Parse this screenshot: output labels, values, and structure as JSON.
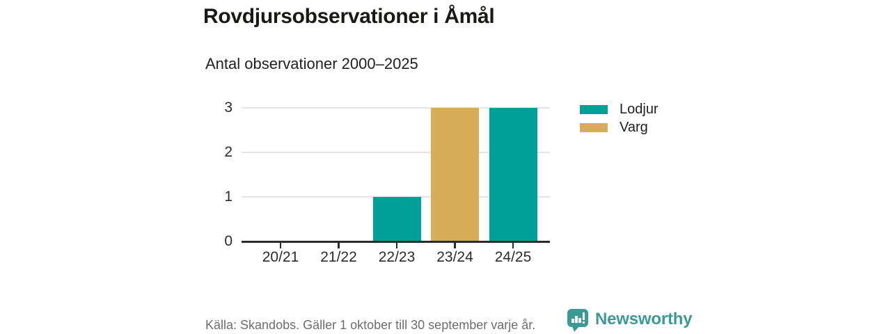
{
  "title": "Rovdjursobservationer i Åmål",
  "subtitle": "Antal observationer 2000–2025",
  "legend": [
    {
      "label": "Lodjur",
      "color": "#00a099"
    },
    {
      "label": "Varg",
      "color": "#d7ad5a"
    }
  ],
  "footer": {
    "source": "Källa: Skandobs. Gäller 1 oktober till 30 september varje år.",
    "brand_name": "Newsworthy",
    "brand_logo_icon": "bar-chart-speech-bubble-icon"
  },
  "colors": {
    "series_lodjur": "#00a099",
    "series_varg": "#d7ad5a",
    "axis": "#2b2b2b",
    "gridline": "#e4e4e4",
    "title_text": "#191917",
    "body_text": "#202020",
    "muted_text": "#6d6d6d",
    "brand_teal": "#3b9a94",
    "background": "#ffffff"
  },
  "chart_data": {
    "type": "bar",
    "stacked": true,
    "title": "Rovdjursobservationer i Åmål",
    "subtitle": "Antal observationer 2000–2025",
    "categories": [
      "20/21",
      "21/22",
      "22/23",
      "23/24",
      "24/25"
    ],
    "series": [
      {
        "name": "Lodjur",
        "color": "#00a099",
        "values": [
          0,
          0,
          1,
          0,
          3
        ]
      },
      {
        "name": "Varg",
        "color": "#d7ad5a",
        "values": [
          0,
          0,
          0,
          3,
          0
        ]
      }
    ],
    "xlabel": "",
    "ylabel": "",
    "ylim": [
      0,
      3
    ],
    "yticks": [
      0,
      1,
      2,
      3
    ],
    "grid": "horizontal",
    "legend_position": "right"
  }
}
